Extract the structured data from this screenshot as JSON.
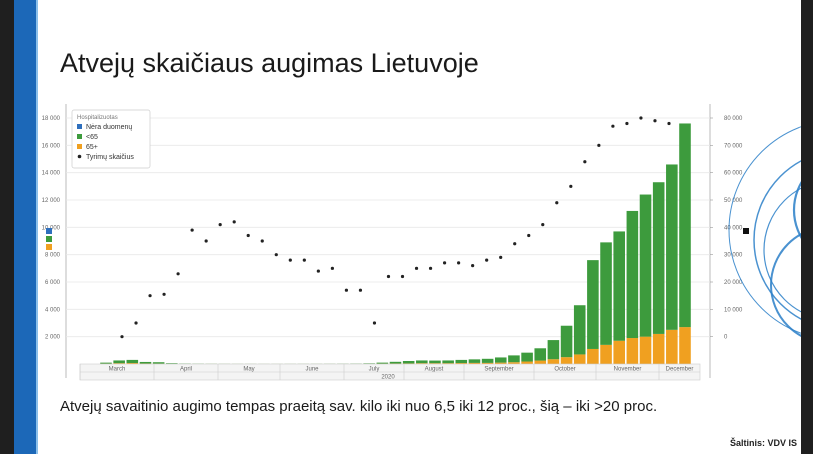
{
  "slide": {
    "title": "Atvejų skaičiaus augimas Lietuvoje",
    "caption": "Atvejų savaitinio augimo tempas praeitą sav. kilo iki nuo 6,5 iki 12 proc., šią – iki >20 proc.",
    "source": "Šaltinis: VDV IS"
  },
  "colors": {
    "no_data": "#2e6fbd",
    "under65": "#3d9b3d",
    "over65": "#f0a020",
    "tests": "#222222",
    "accent_bar": "#1c68b8"
  },
  "chart_data": {
    "type": "bar",
    "stacked": true,
    "legend": {
      "title": "Hospitalizuotas",
      "position": "top-left",
      "entries": [
        "Nėra duomenų",
        "<65",
        "65+",
        "Tyrimų skaičius"
      ]
    },
    "y_left": {
      "min": 0,
      "max": 18000,
      "ticks": [
        "2 000",
        "4 000",
        "6 000",
        "8 000",
        "10 000",
        "12 000",
        "14 000",
        "16 000",
        "18 000"
      ]
    },
    "y_right": {
      "min": -10000,
      "max": 80000,
      "ticks": [
        "0",
        "10 000",
        "20 000",
        "30 000",
        "40 000",
        "50 000",
        "60 000",
        "70 000",
        "80 000"
      ]
    },
    "x_axis": {
      "months": [
        "March",
        "April",
        "May",
        "June",
        "July",
        "August",
        "September",
        "October",
        "November",
        "December"
      ],
      "year": "2020"
    },
    "grid": true,
    "series": [
      {
        "name": "Nėra duomenų",
        "axis": "left",
        "values": [
          0,
          0,
          0,
          0,
          0,
          0,
          0,
          0,
          0,
          0,
          0,
          0,
          0,
          0,
          0,
          0,
          0,
          0,
          0,
          0,
          0,
          0,
          0,
          0,
          0,
          0,
          0,
          0,
          0,
          0,
          0,
          0,
          0,
          0,
          0,
          0,
          0,
          0,
          0,
          0,
          0,
          0,
          0,
          0,
          0,
          0,
          0,
          100,
          0,
          0,
          0,
          0
        ]
      },
      {
        "name": "<65",
        "axis": "left",
        "values": [
          80,
          200,
          230,
          120,
          110,
          50,
          30,
          20,
          15,
          12,
          10,
          10,
          8,
          8,
          10,
          12,
          12,
          15,
          18,
          25,
          40,
          80,
          130,
          180,
          200,
          190,
          200,
          230,
          260,
          300,
          380,
          500,
          650,
          900,
          1400,
          2300,
          3600,
          6500,
          7500,
          8000,
          9300,
          10400,
          11100,
          12100,
          14900
        ]
      },
      {
        "name": "65+",
        "axis": "left",
        "values": [
          20,
          60,
          70,
          30,
          20,
          10,
          5,
          5,
          5,
          3,
          3,
          3,
          3,
          3,
          3,
          3,
          3,
          4,
          5,
          6,
          10,
          20,
          30,
          40,
          60,
          60,
          60,
          70,
          80,
          80,
          100,
          130,
          180,
          250,
          350,
          500,
          700,
          1100,
          1400,
          1700,
          1900,
          2000,
          2200,
          2500,
          2700
        ]
      },
      {
        "name": "Tyrimų skaičius",
        "axis": "right",
        "type": "scatter",
        "values": [
          0,
          5000,
          15000,
          15500,
          23000,
          39000,
          35000,
          41000,
          42000,
          37000,
          35000,
          30000,
          28000,
          28000,
          24000,
          25000,
          17000,
          17000,
          5000,
          22000,
          22000,
          25000,
          25000,
          27000,
          27000,
          26000,
          28000,
          29000,
          34000,
          37000,
          41000,
          49000,
          55000,
          64000,
          70000,
          77000,
          78000,
          80000,
          79000,
          78000
        ]
      }
    ]
  }
}
